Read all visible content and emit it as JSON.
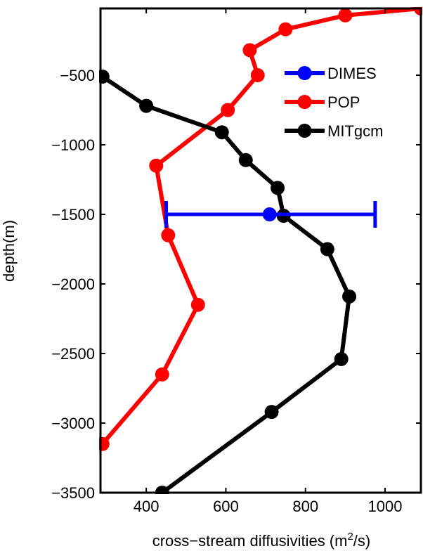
{
  "chart_data": {
    "type": "line",
    "title": "",
    "xlabel": "cross−stream diffusivities (m",
    "xlabel_sup": "2",
    "xlabel_end": "/s)",
    "ylabel": "depth(m)",
    "xlim": [
      285,
      1090
    ],
    "ylim": [
      -3500,
      -20
    ],
    "xticks": [
      400,
      600,
      800,
      1000
    ],
    "yticks": [
      -500,
      -1000,
      -1500,
      -2000,
      -2500,
      -3000,
      -3500
    ],
    "grid": false,
    "legend_position": "top-right",
    "series": [
      {
        "name": "DIMES",
        "color": "#0000ff",
        "points": [
          [
            710,
            -1500
          ]
        ],
        "xerr": [
          [
            450,
            975
          ]
        ]
      },
      {
        "name": "POP",
        "color": "#ff0000",
        "points": [
          [
            1090,
            -20
          ],
          [
            900,
            -70
          ],
          [
            750,
            -170
          ],
          [
            660,
            -320
          ],
          [
            680,
            -500
          ],
          [
            605,
            -750
          ],
          [
            425,
            -1150
          ],
          [
            455,
            -1650
          ],
          [
            530,
            -2150
          ],
          [
            440,
            -2650
          ],
          [
            290,
            -3150
          ]
        ]
      },
      {
        "name": "MITgcm",
        "color": "#000000",
        "points": [
          [
            290,
            -510
          ],
          [
            400,
            -720
          ],
          [
            590,
            -910
          ],
          [
            650,
            -1110
          ],
          [
            730,
            -1310
          ],
          [
            745,
            -1510
          ],
          [
            855,
            -1750
          ],
          [
            910,
            -2090
          ],
          [
            890,
            -2540
          ],
          [
            715,
            -2920
          ],
          [
            440,
            -3500
          ]
        ]
      }
    ]
  }
}
